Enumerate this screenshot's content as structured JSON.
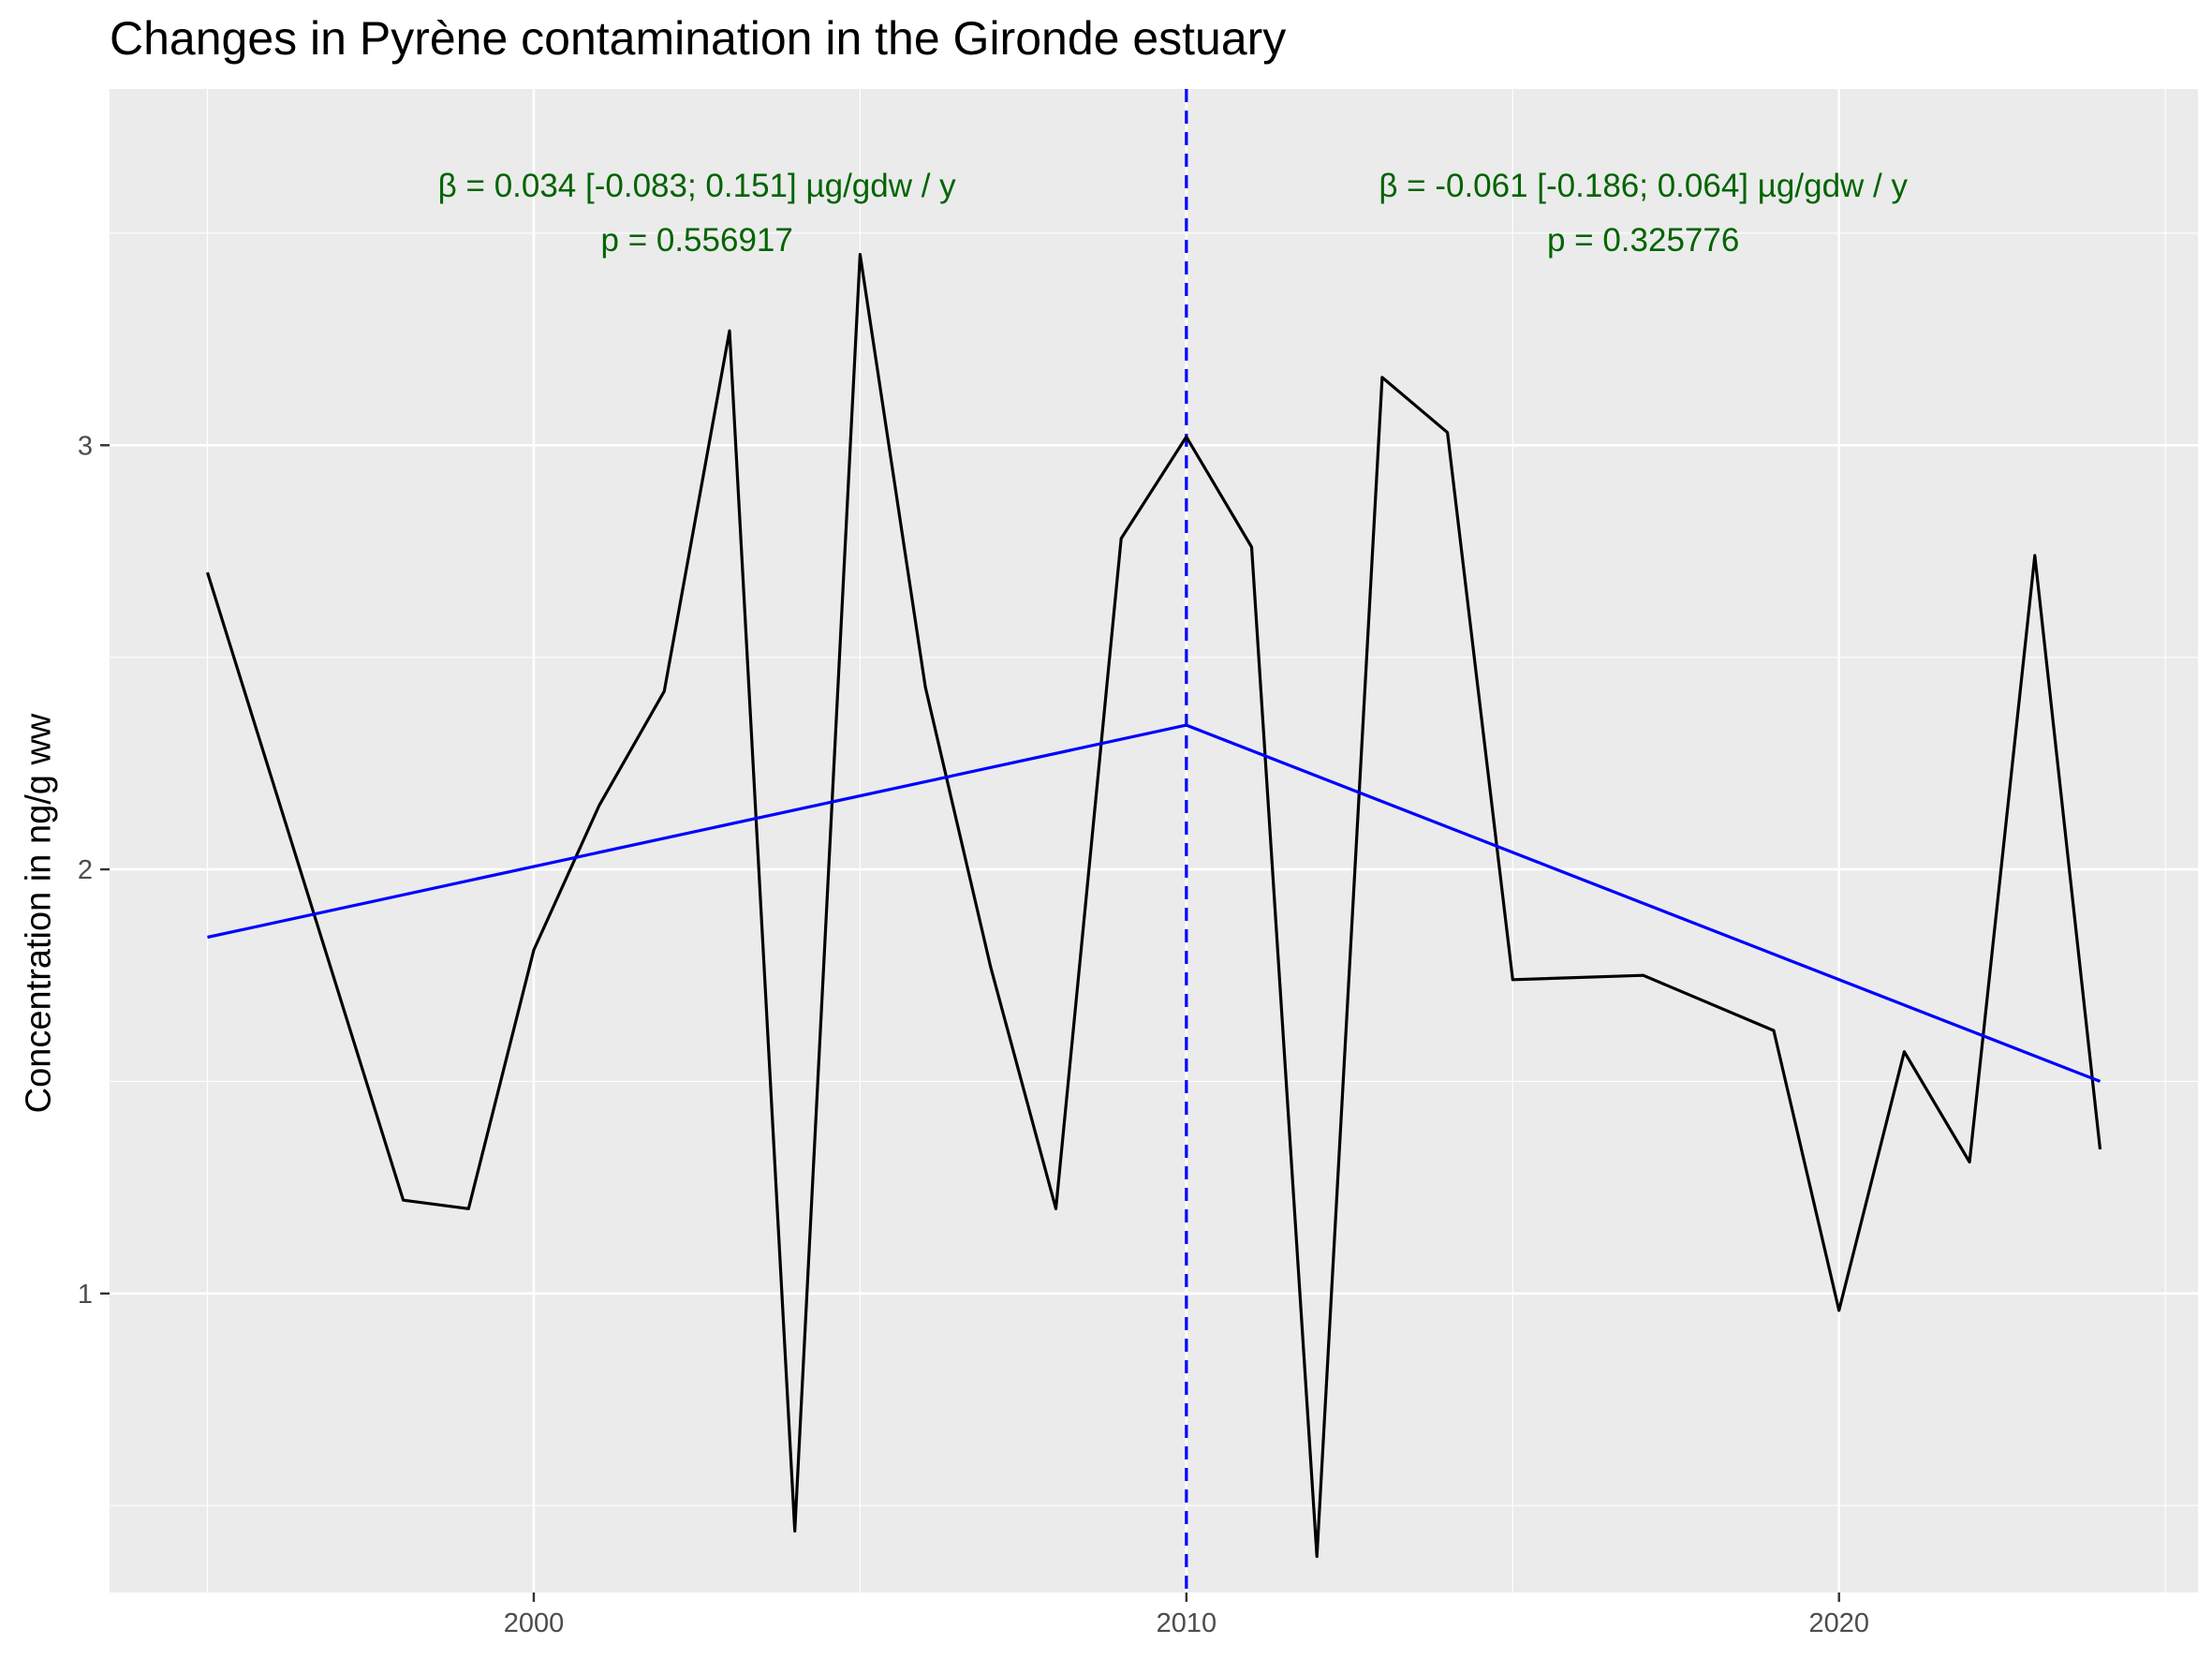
{
  "chart_data": {
    "type": "line",
    "title": "Changes in Pyrène contamination in the Gironde estuary",
    "xlabel": "",
    "ylabel": "Concentration in ng/g ww",
    "xlim": [
      1993.5,
      2025.5
    ],
    "ylim": [
      0.295,
      3.84
    ],
    "x_ticks": [
      2000,
      2010,
      2020
    ],
    "y_ticks": [
      1,
      2,
      3
    ],
    "grid": true,
    "series": [
      {
        "name": "",
        "color": "#000000",
        "points": [
          [
            1995,
            2.7
          ],
          [
            1998,
            1.22
          ],
          [
            1999,
            1.2
          ],
          [
            2000,
            1.81
          ],
          [
            2001,
            2.15
          ],
          [
            2002,
            2.42
          ],
          [
            2003,
            3.27
          ],
          [
            2004,
            0.44
          ],
          [
            2005,
            3.45
          ],
          [
            2006,
            2.43
          ],
          [
            2007,
            1.77
          ],
          [
            2008,
            1.2
          ],
          [
            2009,
            2.78
          ],
          [
            2010,
            3.02
          ],
          [
            2011,
            2.76
          ],
          [
            2012,
            0.38
          ],
          [
            2013,
            3.16
          ],
          [
            2014,
            3.03
          ],
          [
            2015,
            1.74
          ],
          [
            2017,
            1.75
          ],
          [
            2019,
            1.62
          ],
          [
            2020,
            0.96
          ],
          [
            2021,
            1.57
          ],
          [
            2022,
            1.31
          ],
          [
            2023,
            2.74
          ],
          [
            2024,
            1.34
          ]
        ]
      },
      {
        "name": "",
        "color": "#0000ff",
        "points": [
          [
            1995,
            1.84
          ],
          [
            2010,
            2.34
          ],
          [
            2024,
            1.5
          ]
        ]
      }
    ],
    "breakpoint": {
      "x": 2010,
      "color": "#0000ff"
    },
    "annotations": [
      {
        "x": 2002.5,
        "line1": "β = 0.034 [-0.083; 0.151] µg/gdw / y",
        "line2": "p = 0.556917"
      },
      {
        "x": 2017.0,
        "line1": "β = -0.061 [-0.186; 0.064] µg/gdw / y",
        "line2": "p = 0.325776"
      }
    ],
    "colors": {
      "panel": "#ebebeb",
      "grid": "#ffffff",
      "annotation": "#006400"
    }
  }
}
